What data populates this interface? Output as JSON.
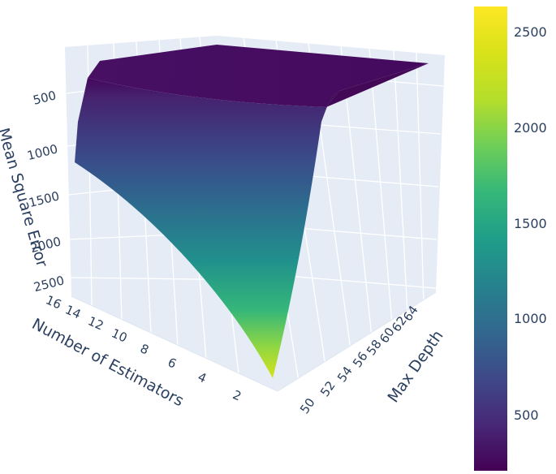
{
  "chart_data": {
    "type": "surface3d",
    "colorscale": "viridis",
    "x_axis": {
      "label": "Number of Estimators",
      "ticks": [
        "2",
        "4",
        "6",
        "8",
        "10",
        "12",
        "14",
        "16"
      ],
      "range": [
        1,
        16
      ]
    },
    "y_axis": {
      "label": "Max Depth",
      "ticks": [
        "50",
        "52",
        "54",
        "56",
        "58",
        "60",
        "62",
        "64"
      ],
      "range": [
        50,
        64
      ]
    },
    "z_axis": {
      "label": "Mean Square Error",
      "ticks": [
        "500",
        "1000",
        "1500",
        "2000",
        "2500"
      ],
      "range": [
        300,
        2600
      ],
      "reversed": true
    },
    "colorbar": {
      "ticks": [
        "500",
        "1000",
        "1500",
        "2000",
        "2500"
      ],
      "range": [
        280,
        2620
      ]
    },
    "surface": {
      "description_points": [
        {
          "estimators": 1,
          "max_depth": 50,
          "mse": 2600
        },
        {
          "estimators": 16,
          "max_depth": 50,
          "mse": 1150
        },
        {
          "estimators": 16,
          "max_depth": 51,
          "mse": 420
        },
        {
          "estimators": 16,
          "max_depth": 64,
          "mse": 300
        },
        {
          "estimators": 1,
          "max_depth": 64,
          "mse": 320
        },
        {
          "estimators": 1,
          "max_depth": 51,
          "mse": 480
        }
      ]
    }
  }
}
